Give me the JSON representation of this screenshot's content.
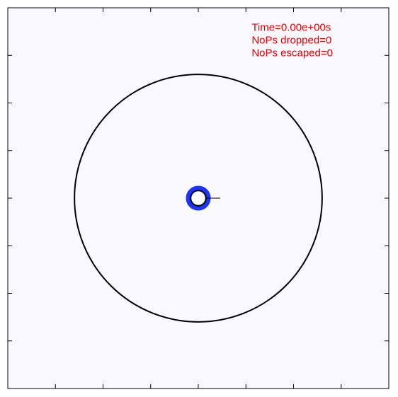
{
  "colors": {
    "background": "#f8f8fe",
    "frame": "#000000",
    "text": "#e60000",
    "particles": "#1a33ff",
    "boundary": "#000000"
  },
  "status": {
    "time": "Time=0.00e+00s",
    "dropped": "NoPs dropped=0",
    "escaped": "NoPs escaped=0"
  },
  "chart_data": {
    "type": "scatter",
    "title": "",
    "xlabel": "",
    "ylabel": "",
    "xlim": [
      -1,
      1
    ],
    "ylim": [
      -1,
      1
    ],
    "grid": false,
    "tick_labels_shown": false,
    "x_ticks": [
      -1,
      -0.75,
      -0.5,
      -0.25,
      0,
      0.25,
      0.5,
      0.75,
      1
    ],
    "y_ticks": [
      -1,
      -0.75,
      -0.5,
      -0.25,
      0,
      0.25,
      0.5,
      0.75,
      1
    ],
    "circles": [
      {
        "name": "outer boundary",
        "center": [
          0,
          0
        ],
        "radius": 0.65
      },
      {
        "name": "inner body",
        "center": [
          0,
          0
        ],
        "radius": 0.04
      }
    ],
    "particle_ring": {
      "center": [
        0,
        0
      ],
      "inner_radius": 0.04,
      "outer_radius": 0.065
    },
    "marker_line": {
      "x": [
        0.04,
        0.115
      ],
      "y": [
        0,
        0
      ]
    },
    "readout_anchor": [
      0.28,
      0.88
    ]
  }
}
